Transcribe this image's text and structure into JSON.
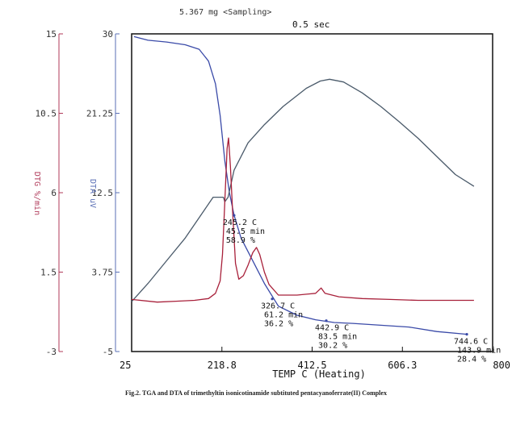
{
  "figure": {
    "header_left": "5.367 mg  <Sampling>",
    "header_right": "0.5 sec",
    "caption": "Fig.2. TGA and DTA of trimethyltin isonicotinamide subtituted pentacyanoferrate(II) Complex"
  },
  "chart_data": {
    "type": "line",
    "x": {
      "label": "TEMP C  (Heating)",
      "range": [
        25,
        800
      ],
      "ticks": [
        25,
        218.8,
        412.5,
        606.3,
        800
      ],
      "tick_labels": [
        "25",
        "218.8",
        "412.5",
        "606.3",
        "800"
      ]
    },
    "y_left_outer": {
      "label": "DTG %/min",
      "range": [
        -3,
        15
      ],
      "ticks": [
        -3,
        1.5,
        6,
        10.5,
        15
      ],
      "tick_labels": [
        "-3",
        "1.5",
        "6",
        "10.5",
        "15"
      ],
      "color": "#b03a5a"
    },
    "y_left_inner": {
      "label": "DTA uV",
      "range": [
        -5,
        30
      ],
      "ticks": [
        -5,
        3.75,
        12.5,
        21.25,
        30
      ],
      "tick_labels": [
        "-5",
        "3.75",
        "12.5",
        "21.25",
        "30"
      ],
      "color": "#5a6fb5"
    },
    "series": [
      {
        "color": "#3a4aa8",
        "axis": "y_left_inner",
        "points": [
          [
            30,
            29.7
          ],
          [
            60,
            29.3
          ],
          [
            100,
            29.1
          ],
          [
            140,
            28.8
          ],
          [
            170,
            28.3
          ],
          [
            190,
            27
          ],
          [
            205,
            24.5
          ],
          [
            215,
            21
          ],
          [
            225,
            16
          ],
          [
            235,
            12.5
          ],
          [
            245,
            10
          ],
          [
            260,
            7.5
          ],
          [
            280,
            5.5
          ],
          [
            310,
            2.5
          ],
          [
            340,
            0
          ],
          [
            380,
            -1
          ],
          [
            420,
            -1.5
          ],
          [
            460,
            -1.8
          ],
          [
            500,
            -1.9
          ],
          [
            560,
            -2.1
          ],
          [
            620,
            -2.3
          ],
          [
            680,
            -2.8
          ],
          [
            745,
            -3.1
          ]
        ]
      },
      {
        "color": "#4a5a6a",
        "axis": "y_left_inner",
        "points": [
          [
            25,
            0.5
          ],
          [
            60,
            2.5
          ],
          [
            100,
            5
          ],
          [
            140,
            7.5
          ],
          [
            180,
            10.5
          ],
          [
            200,
            12
          ],
          [
            215,
            12
          ],
          [
            222,
            12
          ],
          [
            225,
            11.5
          ],
          [
            232,
            12
          ],
          [
            245,
            15
          ],
          [
            275,
            18
          ],
          [
            310,
            20
          ],
          [
            350,
            22
          ],
          [
            400,
            24
          ],
          [
            430,
            24.8
          ],
          [
            450,
            25
          ],
          [
            480,
            24.7
          ],
          [
            520,
            23.5
          ],
          [
            560,
            22
          ],
          [
            600,
            20.3
          ],
          [
            640,
            18.5
          ],
          [
            680,
            16.5
          ],
          [
            720,
            14.5
          ],
          [
            760,
            13.2
          ]
        ]
      },
      {
        "color": "#a8203a",
        "axis": "y_left_outer",
        "points": [
          [
            25,
            -0.05
          ],
          [
            80,
            -0.2
          ],
          [
            120,
            -0.15
          ],
          [
            160,
            -0.1
          ],
          [
            190,
            0
          ],
          [
            205,
            0.3
          ],
          [
            215,
            1
          ],
          [
            220,
            2.5
          ],
          [
            225,
            5.5
          ],
          [
            230,
            8.5
          ],
          [
            233,
            9.1
          ],
          [
            237,
            7.5
          ],
          [
            242,
            4.8
          ],
          [
            248,
            2
          ],
          [
            255,
            1.1
          ],
          [
            265,
            1.3
          ],
          [
            275,
            1.9
          ],
          [
            285,
            2.6
          ],
          [
            293,
            2.9
          ],
          [
            300,
            2.5
          ],
          [
            310,
            1.5
          ],
          [
            320,
            0.8
          ],
          [
            340,
            0.2
          ],
          [
            380,
            0.2
          ],
          [
            420,
            0.3
          ],
          [
            432,
            0.6
          ],
          [
            440,
            0.3
          ],
          [
            470,
            0.1
          ],
          [
            520,
            0
          ],
          [
            580,
            -0.05
          ],
          [
            640,
            -0.1
          ],
          [
            700,
            -0.1
          ],
          [
            760,
            -0.1
          ]
        ]
      }
    ],
    "annotations": [
      {
        "lines": [
          "245.2 C",
          "45.5 min",
          "58.9 %"
        ],
        "at": [
          245,
          10
        ]
      },
      {
        "lines": [
          "326.7 C",
          "61.2 min",
          "36.2 %"
        ],
        "at": [
          326.7,
          0.8
        ]
      },
      {
        "lines": [
          "442.9 C",
          "83.5 min",
          "30.2 %"
        ],
        "at": [
          442.9,
          -1.6
        ]
      },
      {
        "lines": [
          "744.6 C",
          "143.9 min",
          "28.4 %"
        ],
        "at": [
          744.6,
          -3.1
        ]
      }
    ]
  }
}
